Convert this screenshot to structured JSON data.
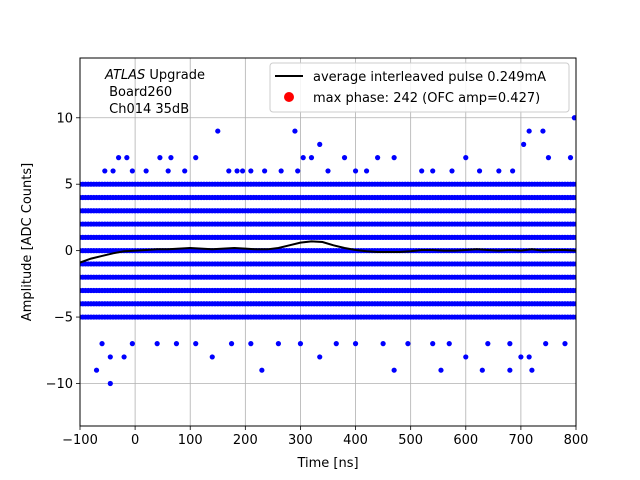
{
  "chart_data": {
    "type": "scatter",
    "title": "",
    "xlabel": "Time [ns]",
    "ylabel": "Amplitude [ADC Counts]",
    "xlim": [
      -100,
      800
    ],
    "ylim": [
      -13.2,
      14.5
    ],
    "xticks": [
      -100,
      0,
      100,
      200,
      300,
      400,
      500,
      600,
      700,
      800
    ],
    "yticks": [
      -10,
      -5,
      0,
      5,
      10
    ],
    "grid": true,
    "legend_position": "top-right",
    "annotation": {
      "experiment": "ATLAS",
      "suffix": " Upgrade",
      "board": " Board260",
      "channel": " Ch014 35dB"
    },
    "series": [
      {
        "name": "average interleaved pulse 0.249mA",
        "kind": "line",
        "color": "#000000",
        "x": [
          -100,
          -80,
          -60,
          -40,
          -20,
          0,
          20,
          40,
          60,
          80,
          100,
          120,
          140,
          160,
          180,
          200,
          220,
          240,
          260,
          280,
          300,
          320,
          340,
          360,
          380,
          400,
          420,
          440,
          460,
          480,
          500,
          520,
          540,
          560,
          580,
          600,
          620,
          640,
          660,
          680,
          700,
          720,
          740,
          760,
          780,
          800
        ],
        "y": [
          -0.9,
          -0.6,
          -0.4,
          -0.2,
          -0.05,
          0,
          0.05,
          0.1,
          0.1,
          0.15,
          0.2,
          0.15,
          0.1,
          0.15,
          0.2,
          0.15,
          0.1,
          0.1,
          0.2,
          0.4,
          0.6,
          0.7,
          0.65,
          0.4,
          0.2,
          0.05,
          -0.05,
          -0.1,
          -0.1,
          -0.1,
          -0.05,
          0.05,
          0.05,
          0.0,
          0.0,
          0.05,
          0.1,
          0.05,
          0.0,
          0.05,
          0.0,
          0.1,
          0.0,
          0.05,
          0.05,
          0.0
        ]
      },
      {
        "name": "max phase: 242 (OFC amp=0.427)",
        "kind": "marker",
        "color": "#ff0000",
        "x": [],
        "y": []
      },
      {
        "name": "",
        "kind": "samples",
        "color": "#0000ff",
        "dense_levels": [
          -5,
          -4,
          -3,
          -2,
          -1,
          0,
          1,
          2,
          3,
          4,
          5
        ],
        "x_step": 5,
        "sparse_points": [
          {
            "x": -55,
            "y": 6
          },
          {
            "x": -40,
            "y": 6
          },
          {
            "x": -30,
            "y": 7
          },
          {
            "x": -15,
            "y": 7
          },
          {
            "x": -5,
            "y": 6
          },
          {
            "x": 20,
            "y": 6
          },
          {
            "x": 45,
            "y": 7
          },
          {
            "x": 60,
            "y": 6
          },
          {
            "x": 65,
            "y": 7
          },
          {
            "x": 90,
            "y": 6
          },
          {
            "x": 110,
            "y": 7
          },
          {
            "x": 150,
            "y": 9
          },
          {
            "x": 170,
            "y": 6
          },
          {
            "x": 185,
            "y": 6
          },
          {
            "x": 195,
            "y": 6
          },
          {
            "x": 210,
            "y": 6
          },
          {
            "x": 235,
            "y": 6
          },
          {
            "x": 265,
            "y": 6
          },
          {
            "x": 290,
            "y": 9
          },
          {
            "x": 295,
            "y": 6
          },
          {
            "x": 305,
            "y": 7
          },
          {
            "x": 320,
            "y": 7
          },
          {
            "x": 335,
            "y": 8
          },
          {
            "x": 350,
            "y": 6
          },
          {
            "x": 380,
            "y": 7
          },
          {
            "x": 400,
            "y": 6
          },
          {
            "x": 420,
            "y": 6
          },
          {
            "x": 440,
            "y": 7
          },
          {
            "x": 470,
            "y": 7
          },
          {
            "x": 520,
            "y": 6
          },
          {
            "x": 540,
            "y": 6
          },
          {
            "x": 575,
            "y": 6
          },
          {
            "x": 600,
            "y": 7
          },
          {
            "x": 625,
            "y": 6
          },
          {
            "x": 660,
            "y": 6
          },
          {
            "x": 685,
            "y": 6
          },
          {
            "x": 705,
            "y": 8
          },
          {
            "x": 715,
            "y": 9
          },
          {
            "x": 740,
            "y": 9
          },
          {
            "x": 750,
            "y": 7
          },
          {
            "x": 790,
            "y": 7
          },
          {
            "x": 797,
            "y": 10
          },
          {
            "x": -60,
            "y": -7
          },
          {
            "x": -45,
            "y": -8
          },
          {
            "x": -20,
            "y": -8
          },
          {
            "x": -5,
            "y": -7
          },
          {
            "x": 40,
            "y": -7
          },
          {
            "x": 75,
            "y": -7
          },
          {
            "x": 110,
            "y": -7
          },
          {
            "x": 140,
            "y": -8
          },
          {
            "x": 175,
            "y": -7
          },
          {
            "x": 210,
            "y": -7
          },
          {
            "x": 260,
            "y": -7
          },
          {
            "x": 300,
            "y": -7
          },
          {
            "x": 335,
            "y": -8
          },
          {
            "x": 365,
            "y": -7
          },
          {
            "x": 400,
            "y": -7
          },
          {
            "x": 450,
            "y": -7
          },
          {
            "x": 495,
            "y": -7
          },
          {
            "x": 540,
            "y": -7
          },
          {
            "x": 570,
            "y": -7
          },
          {
            "x": 600,
            "y": -8
          },
          {
            "x": 640,
            "y": -7
          },
          {
            "x": 680,
            "y": -7
          },
          {
            "x": 715,
            "y": -8
          },
          {
            "x": 745,
            "y": -7
          },
          {
            "x": 780,
            "y": -7
          },
          {
            "x": 700,
            "y": -8
          },
          {
            "x": -70,
            "y": -9
          },
          {
            "x": 230,
            "y": -9
          },
          {
            "x": 470,
            "y": -9
          },
          {
            "x": 555,
            "y": -9
          },
          {
            "x": 630,
            "y": -9
          },
          {
            "x": 680,
            "y": -9
          },
          {
            "x": 720,
            "y": -9
          },
          {
            "x": -45,
            "y": -10
          }
        ]
      }
    ]
  }
}
